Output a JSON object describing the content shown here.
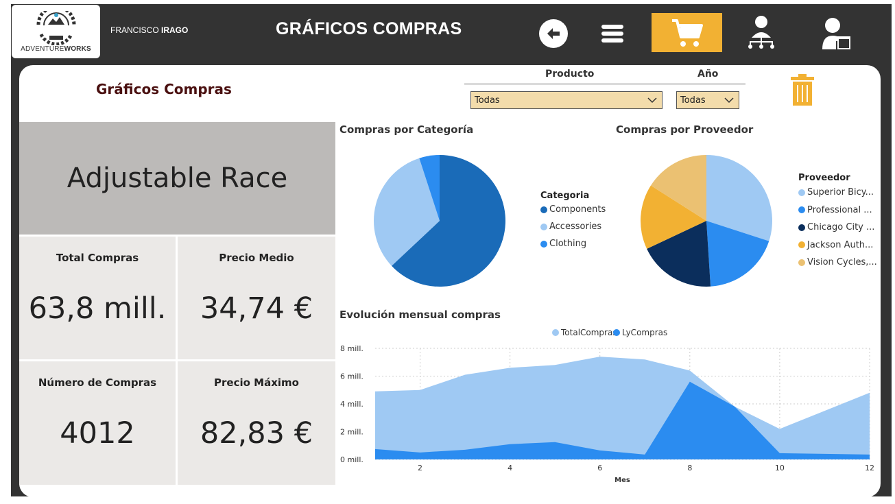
{
  "header": {
    "logo_brand_light": "ADVENTURE",
    "logo_brand_bold": "WORKS",
    "user_first": "FRANCISCO",
    "user_last": "IRAGO",
    "title": "GRÁFICOS COMPRAS",
    "buttons": [
      "back-icon",
      "menu-icon",
      "cart-icon",
      "org-chart-icon",
      "user-icon"
    ],
    "accent_color": "#f2b133"
  },
  "report": {
    "title": "Gráficos Compras"
  },
  "filters": {
    "producto_label": "Producto",
    "producto_value": "Todas",
    "anio_label": "Año",
    "anio_value": "Todas"
  },
  "product_card": {
    "value": "Adjustable Race"
  },
  "kpis": [
    {
      "label": "Total Compras",
      "value": "63,8 mill."
    },
    {
      "label": "Precio Medio",
      "value": "34,74 €"
    },
    {
      "label": "Número de Compras",
      "value": "4012"
    },
    {
      "label": "Precio Máximo",
      "value": "82,83 €"
    }
  ],
  "chart_data": [
    {
      "type": "pie",
      "title": "Compras por Categoría",
      "legend_title": "Categoria",
      "legend_position": "right",
      "labels": [
        "Components",
        "Accessories",
        "Clothing"
      ],
      "values": [
        63,
        32,
        5
      ],
      "colors": [
        "#1a6bb8",
        "#9fc9f3",
        "#2b8cf0"
      ]
    },
    {
      "type": "pie",
      "title": "Compras por Proveedor",
      "legend_title": "Proveedor",
      "legend_position": "right",
      "labels": [
        "Superior Bicy...",
        "Professional ...",
        "Chicago City ...",
        "Jackson Auth...",
        "Vision Cycles,..."
      ],
      "values": [
        30,
        19,
        19,
        16,
        16
      ],
      "colors": [
        "#9fc9f3",
        "#2b8cf0",
        "#0b2e5c",
        "#f2b133",
        "#ebc172"
      ]
    },
    {
      "type": "area",
      "title": "Evolución mensual compras",
      "xlabel": "Mes",
      "ylabel": "",
      "legend_position": "top-center",
      "x": [
        1,
        2,
        3,
        4,
        5,
        6,
        7,
        8,
        9,
        10,
        11,
        12
      ],
      "xticks": [
        2,
        4,
        6,
        8,
        10,
        12
      ],
      "yticks": [
        "0 mill.",
        "2 mill.",
        "4 mill.",
        "6 mill.",
        "8 mill."
      ],
      "ylim": [
        0,
        8
      ],
      "grid": true,
      "series": [
        {
          "name": "TotalCompras",
          "color": "#9fc9f3",
          "values": [
            4.9,
            5.0,
            6.1,
            6.6,
            6.8,
            7.4,
            7.2,
            6.4,
            3.8,
            2.2,
            3.5,
            4.8
          ]
        },
        {
          "name": "LyCompras",
          "color": "#2b8cf0",
          "values": [
            0.75,
            0.5,
            0.7,
            1.1,
            1.25,
            0.65,
            0.35,
            5.6,
            3.8,
            0.45,
            0.4,
            0.35
          ]
        }
      ]
    }
  ]
}
